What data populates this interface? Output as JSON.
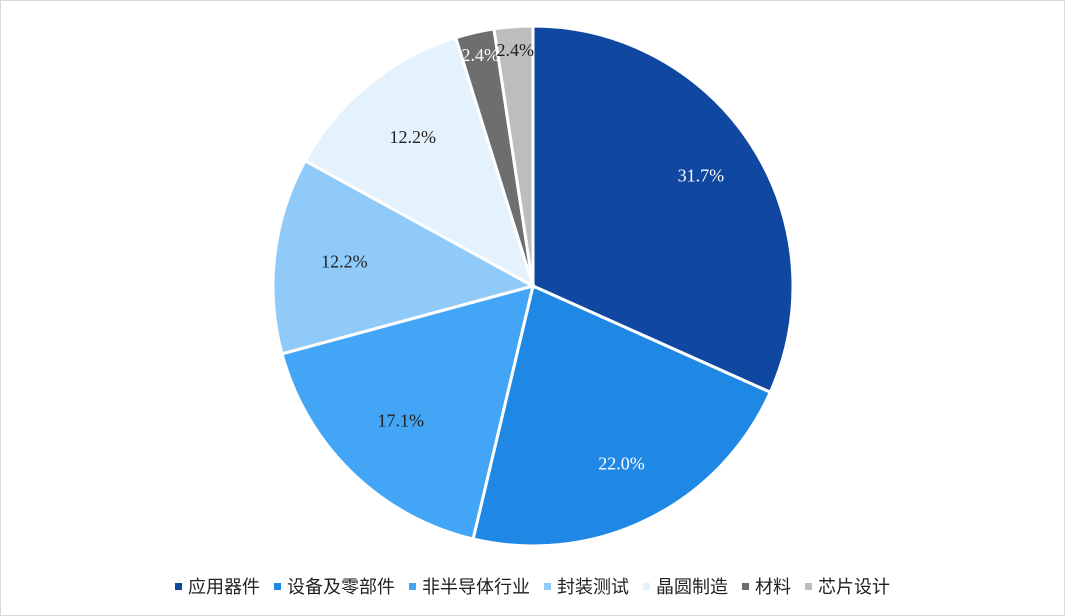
{
  "chart_data": {
    "type": "pie",
    "categories": [
      "应用器件",
      "设备及零部件",
      "非半导体行业",
      "封装测试",
      "晶圆制造",
      "材料",
      "芯片设计"
    ],
    "values": [
      31.7,
      22.0,
      17.1,
      12.2,
      12.2,
      2.4,
      2.4
    ],
    "data_labels": [
      "31.7%",
      "22.0%",
      "17.1%",
      "12.2%",
      "12.2%",
      "2.4%",
      "2.4%"
    ],
    "colors": [
      "#0f47a1",
      "#1f88e5",
      "#42a5f5",
      "#90caf9",
      "#e3f2fd",
      "#6e6e6e",
      "#bdbdbd"
    ],
    "label_colors": [
      "#ffffff",
      "#ffffff",
      "#222222",
      "#222222",
      "#222222",
      "#ffffff",
      "#222222"
    ],
    "start": "12 o'clock",
    "direction": "clockwise",
    "legend_position": "bottom",
    "title": "",
    "xlabel": "",
    "ylabel": ""
  }
}
